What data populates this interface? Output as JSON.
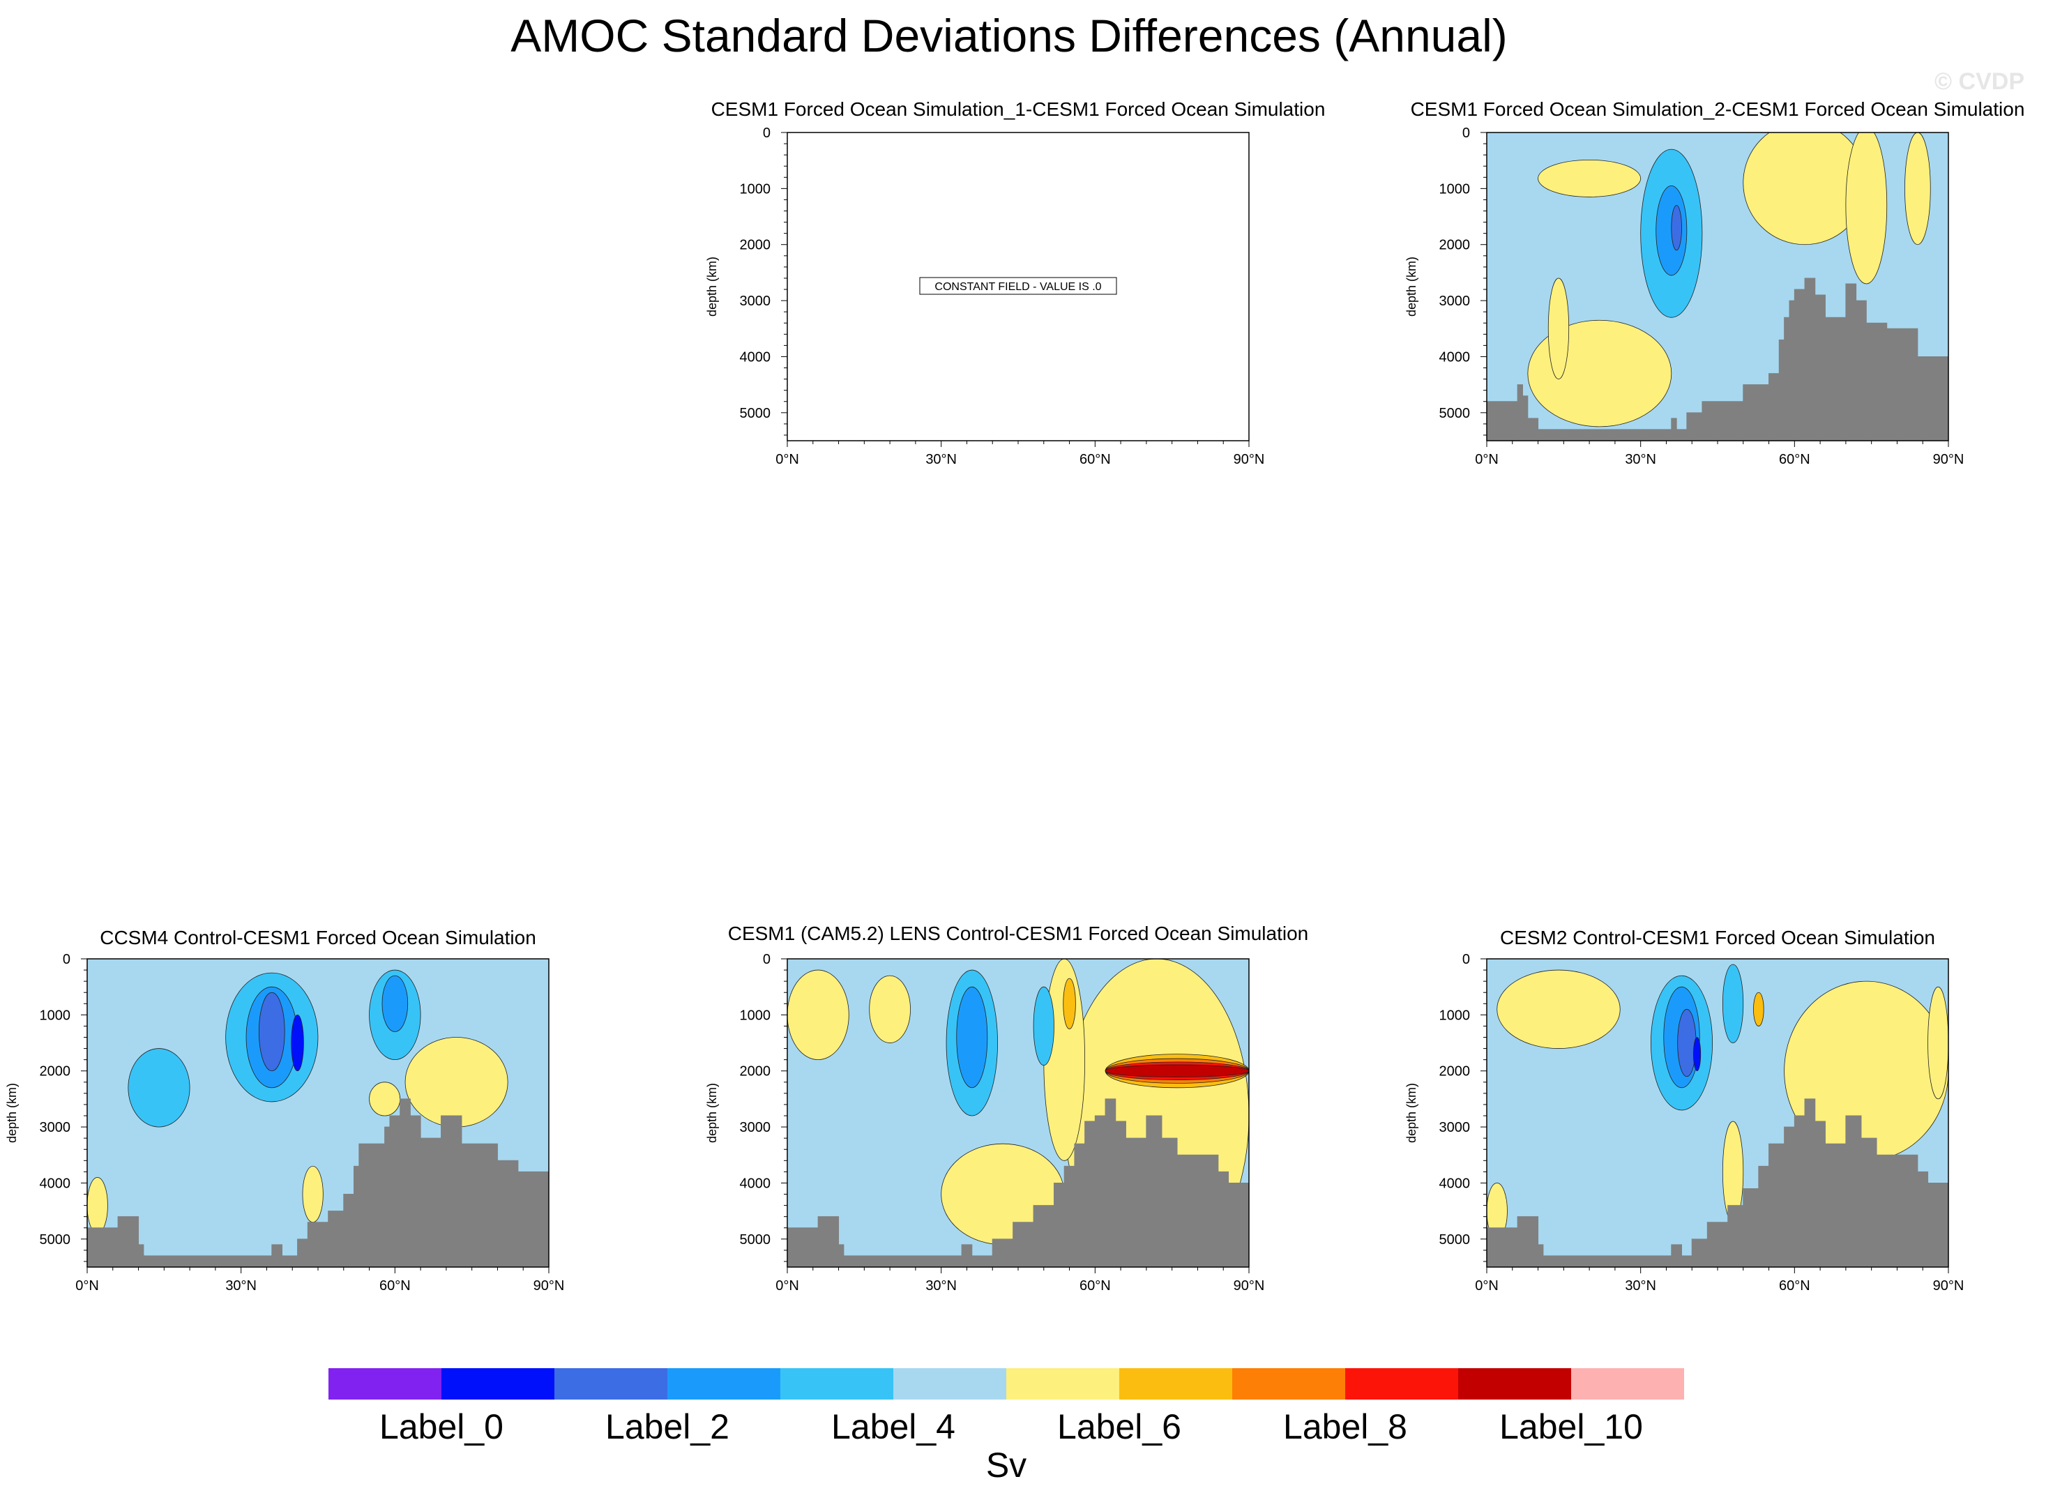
{
  "title": "AMOC Standard Deviations Differences (Annual)",
  "watermark": "© CVDP",
  "chart_data": {
    "type": "heatmap",
    "variable": "AMOC standard deviation difference",
    "units": "Sv",
    "xlim": [
      0,
      90
    ],
    "ylim": [
      0,
      5500
    ],
    "y_reversed": true,
    "ylabel": "depth (km)",
    "x_ticks": [
      "0°N",
      "30°N",
      "60°N",
      "90°N"
    ],
    "x_tick_values": [
      0,
      30,
      60,
      90
    ],
    "y_ticks": [
      "0",
      "1000",
      "2000",
      "3000",
      "4000",
      "5000"
    ],
    "y_tick_values": [
      0,
      1000,
      2000,
      3000,
      4000,
      5000
    ],
    "y_minor_step": 200,
    "x_minor_step": 5,
    "colorbar": {
      "colors": [
        "#8122f0",
        "#0010fb",
        "#3c6de4",
        "#1a9bfb",
        "#38c3f7",
        "#a8d8f0",
        "#fdf07d",
        "#fbbe10",
        "#fd7f05",
        "#fd1409",
        "#c20000",
        "#fdb1b1"
      ],
      "labels": [
        "Label_0",
        "Label_2",
        "Label_4",
        "Label_6",
        "Label_8",
        "Label_10"
      ],
      "units": "Sv"
    },
    "panels": [
      {
        "title": "CESM1 Forced Ocean Simulation_1-CESM1 Forced Ocean Simulation",
        "message": "CONSTANT FIELD - VALUE IS .0",
        "constant": true,
        "bathymetry": []
      },
      {
        "title": "CESM1 Forced Ocean Simulation_2-CESM1 Forced Ocean Simulation",
        "constant": false,
        "bathymetry": [
          [
            0,
            4800
          ],
          [
            5,
            4800
          ],
          [
            6,
            4500
          ],
          [
            7,
            4700
          ],
          [
            8,
            5100
          ],
          [
            10,
            5300
          ],
          [
            35,
            5300
          ],
          [
            36,
            5100
          ],
          [
            37,
            5300
          ],
          [
            38,
            5300
          ],
          [
            39,
            5000
          ],
          [
            42,
            4800
          ],
          [
            50,
            4500
          ],
          [
            55,
            4300
          ],
          [
            57,
            3700
          ],
          [
            58,
            3300
          ],
          [
            59,
            3000
          ],
          [
            60,
            2800
          ],
          [
            62,
            2600
          ],
          [
            64,
            2900
          ],
          [
            66,
            3300
          ],
          [
            70,
            2700
          ],
          [
            72,
            3000
          ],
          [
            74,
            3400
          ],
          [
            78,
            3500
          ],
          [
            80,
            3500
          ],
          [
            84,
            4000
          ],
          [
            86,
            4000
          ],
          [
            88,
            4000
          ],
          [
            89,
            4000
          ],
          [
            90,
            4000
          ]
        ],
        "fields": [
          {
            "c": 6,
            "x": 20,
            "y": 820,
            "rx": 10,
            "ry": 330
          },
          {
            "c": 6,
            "x": 62,
            "y": 900,
            "rx": 12,
            "ry": 1100
          },
          {
            "c": 6,
            "x": 74,
            "y": 1300,
            "rx": 4,
            "ry": 1400
          },
          {
            "c": 6,
            "x": 84,
            "y": 1000,
            "rx": 2.5,
            "ry": 1000
          },
          {
            "c": 6,
            "x": 22,
            "y": 4300,
            "rx": 14,
            "ry": 950
          },
          {
            "c": 6,
            "x": 14,
            "y": 3500,
            "rx": 2,
            "ry": 900
          },
          {
            "c": 4,
            "x": 36,
            "y": 1800,
            "rx": 6,
            "ry": 1500
          },
          {
            "c": 3,
            "x": 36,
            "y": 1750,
            "rx": 3,
            "ry": 800
          },
          {
            "c": 2,
            "x": 37,
            "y": 1700,
            "rx": 1,
            "ry": 400
          }
        ]
      },
      {
        "title": "CCSM4 Control-CESM1 Forced Ocean Simulation",
        "constant": false,
        "bathymetry": [
          [
            0,
            4800
          ],
          [
            5,
            4800
          ],
          [
            6,
            4600
          ],
          [
            9,
            4600
          ],
          [
            10,
            5100
          ],
          [
            11,
            5300
          ],
          [
            35,
            5300
          ],
          [
            36,
            5100
          ],
          [
            38,
            5300
          ],
          [
            41,
            5000
          ],
          [
            43,
            4700
          ],
          [
            47,
            4500
          ],
          [
            50,
            4200
          ],
          [
            52,
            3700
          ],
          [
            53,
            3300
          ],
          [
            56,
            3300
          ],
          [
            58,
            3000
          ],
          [
            59,
            2800
          ],
          [
            61,
            2500
          ],
          [
            63,
            2800
          ],
          [
            65,
            3200
          ],
          [
            69,
            2800
          ],
          [
            73,
            3300
          ],
          [
            78,
            3300
          ],
          [
            80,
            3600
          ],
          [
            84,
            3800
          ],
          [
            86,
            3800
          ],
          [
            88,
            3800
          ],
          [
            90,
            3800
          ]
        ],
        "fields": [
          {
            "c": 6,
            "x": 72,
            "y": 2200,
            "rx": 10,
            "ry": 800
          },
          {
            "c": 6,
            "x": 58,
            "y": 2500,
            "rx": 3,
            "ry": 300
          },
          {
            "c": 6,
            "x": 44,
            "y": 4200,
            "rx": 2,
            "ry": 500
          },
          {
            "c": 6,
            "x": 2,
            "y": 4400,
            "rx": 2,
            "ry": 500
          },
          {
            "c": 4,
            "x": 14,
            "y": 2300,
            "rx": 6,
            "ry": 700
          },
          {
            "c": 4,
            "x": 36,
            "y": 1400,
            "rx": 9,
            "ry": 1150
          },
          {
            "c": 3,
            "x": 36,
            "y": 1400,
            "rx": 5,
            "ry": 900
          },
          {
            "c": 2,
            "x": 36,
            "y": 1300,
            "rx": 2.5,
            "ry": 700
          },
          {
            "c": 1,
            "x": 41,
            "y": 1500,
            "rx": 1.2,
            "ry": 500
          },
          {
            "c": 4,
            "x": 60,
            "y": 1000,
            "rx": 5,
            "ry": 800
          },
          {
            "c": 3,
            "x": 60,
            "y": 800,
            "rx": 2.5,
            "ry": 500
          }
        ]
      },
      {
        "title": "CESM1 (CAM5.2) LENS Control-CESM1 Forced Ocean Simulation",
        "constant": false,
        "bathymetry": [
          [
            0,
            4800
          ],
          [
            5,
            4800
          ],
          [
            6,
            4600
          ],
          [
            9,
            4600
          ],
          [
            10,
            5100
          ],
          [
            11,
            5300
          ],
          [
            33,
            5300
          ],
          [
            34,
            5100
          ],
          [
            36,
            5300
          ],
          [
            40,
            5000
          ],
          [
            44,
            4700
          ],
          [
            48,
            4400
          ],
          [
            52,
            4000
          ],
          [
            54,
            3700
          ],
          [
            56,
            3300
          ],
          [
            58,
            2900
          ],
          [
            60,
            2800
          ],
          [
            62,
            2500
          ],
          [
            64,
            2900
          ],
          [
            66,
            3200
          ],
          [
            70,
            2800
          ],
          [
            73,
            3200
          ],
          [
            76,
            3500
          ],
          [
            80,
            3500
          ],
          [
            84,
            3800
          ],
          [
            86,
            4000
          ],
          [
            88,
            4000
          ],
          [
            90,
            4000
          ]
        ],
        "fields": [
          {
            "c": 6,
            "x": 6,
            "y": 1000,
            "rx": 6,
            "ry": 800
          },
          {
            "c": 6,
            "x": 20,
            "y": 900,
            "rx": 4,
            "ry": 600
          },
          {
            "c": 6,
            "x": 72,
            "y": 2800,
            "rx": 18,
            "ry": 2800
          },
          {
            "c": 6,
            "x": 42,
            "y": 4200,
            "rx": 12,
            "ry": 900
          },
          {
            "c": 6,
            "x": 54,
            "y": 1800,
            "rx": 4,
            "ry": 1800
          },
          {
            "c": 7,
            "x": 55,
            "y": 800,
            "rx": 1.2,
            "ry": 450
          },
          {
            "c": 4,
            "x": 36,
            "y": 1500,
            "rx": 5,
            "ry": 1300
          },
          {
            "c": 3,
            "x": 36,
            "y": 1400,
            "rx": 3,
            "ry": 900
          },
          {
            "c": 4,
            "x": 50,
            "y": 1200,
            "rx": 2,
            "ry": 700
          },
          {
            "c": 7,
            "x": 76,
            "y": 2000,
            "rx": 14,
            "ry": 300
          },
          {
            "c": 8,
            "x": 76,
            "y": 2000,
            "rx": 14,
            "ry": 220
          },
          {
            "c": 9,
            "x": 76,
            "y": 2000,
            "rx": 14,
            "ry": 160
          },
          {
            "c": 10,
            "x": 76,
            "y": 2000,
            "rx": 14,
            "ry": 110
          }
        ]
      },
      {
        "title": "CESM2 Control-CESM1 Forced Ocean Simulation",
        "constant": false,
        "bathymetry": [
          [
            0,
            4800
          ],
          [
            5,
            4800
          ],
          [
            6,
            4600
          ],
          [
            9,
            4600
          ],
          [
            10,
            5100
          ],
          [
            11,
            5300
          ],
          [
            35,
            5300
          ],
          [
            36,
            5100
          ],
          [
            38,
            5300
          ],
          [
            40,
            5000
          ],
          [
            43,
            4700
          ],
          [
            47,
            4400
          ],
          [
            50,
            4100
          ],
          [
            53,
            3700
          ],
          [
            55,
            3300
          ],
          [
            58,
            3000
          ],
          [
            60,
            2800
          ],
          [
            62,
            2500
          ],
          [
            64,
            2900
          ],
          [
            66,
            3300
          ],
          [
            70,
            2800
          ],
          [
            73,
            3200
          ],
          [
            76,
            3500
          ],
          [
            80,
            3500
          ],
          [
            84,
            3800
          ],
          [
            86,
            4000
          ],
          [
            88,
            4000
          ],
          [
            90,
            4000
          ]
        ],
        "fields": [
          {
            "c": 6,
            "x": 14,
            "y": 900,
            "rx": 12,
            "ry": 700
          },
          {
            "c": 6,
            "x": 74,
            "y": 2000,
            "rx": 16,
            "ry": 1600
          },
          {
            "c": 6,
            "x": 48,
            "y": 3800,
            "rx": 2,
            "ry": 900
          },
          {
            "c": 6,
            "x": 2,
            "y": 4500,
            "rx": 2,
            "ry": 500
          },
          {
            "c": 6,
            "x": 88,
            "y": 1500,
            "rx": 2,
            "ry": 1000
          },
          {
            "c": 7,
            "x": 53,
            "y": 900,
            "rx": 1,
            "ry": 300
          },
          {
            "c": 4,
            "x": 38,
            "y": 1500,
            "rx": 6,
            "ry": 1200
          },
          {
            "c": 3,
            "x": 38,
            "y": 1400,
            "rx": 3.5,
            "ry": 900
          },
          {
            "c": 2,
            "x": 39,
            "y": 1500,
            "rx": 1.8,
            "ry": 600
          },
          {
            "c": 1,
            "x": 41,
            "y": 1700,
            "rx": 0.7,
            "ry": 300
          },
          {
            "c": 4,
            "x": 48,
            "y": 800,
            "rx": 2,
            "ry": 700
          }
        ]
      }
    ]
  }
}
